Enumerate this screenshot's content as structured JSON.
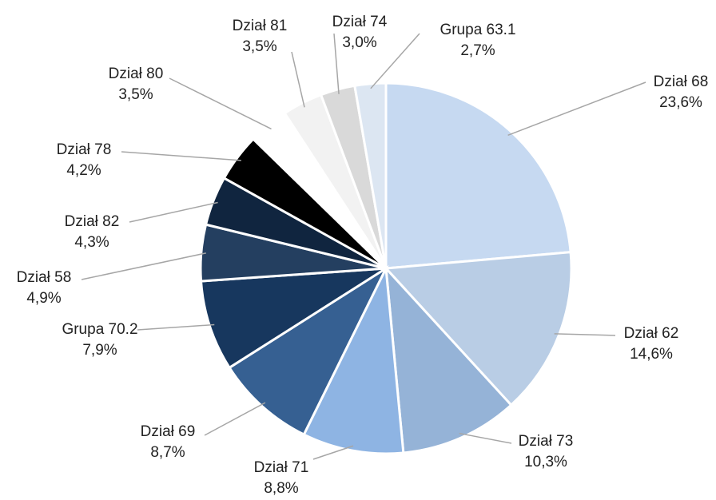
{
  "chart_data": {
    "type": "pie",
    "categories": [
      "Dział 68",
      "Dział 62",
      "Dział 73",
      "Dział 71",
      "Dział 69",
      "Grupa 70.2",
      "Dział 58",
      "Dział 82",
      "Dział 78",
      "Dział 80",
      "Dział 81",
      "Dział 74",
      "Grupa 63.1"
    ],
    "values": [
      23.6,
      14.6,
      10.3,
      8.8,
      8.7,
      7.9,
      4.9,
      4.3,
      4.2,
      3.5,
      3.5,
      3.0,
      2.7
    ],
    "value_labels": [
      "23,6%",
      "14,6%",
      "10,3%",
      "8,8%",
      "8,7%",
      "7,9%",
      "4,9%",
      "4,3%",
      "4,2%",
      "3,5%",
      "3,5%",
      "3,0%",
      "2,7%"
    ],
    "colors": [
      "#c6d9f1",
      "#b9cde5",
      "#95b3d7",
      "#8eb4e3",
      "#366092",
      "#17375e",
      "#243f60",
      "#10253f",
      "#000000",
      "#ffffff",
      "#f2f2f2",
      "#d9d9d9",
      "#dce6f2"
    ]
  }
}
